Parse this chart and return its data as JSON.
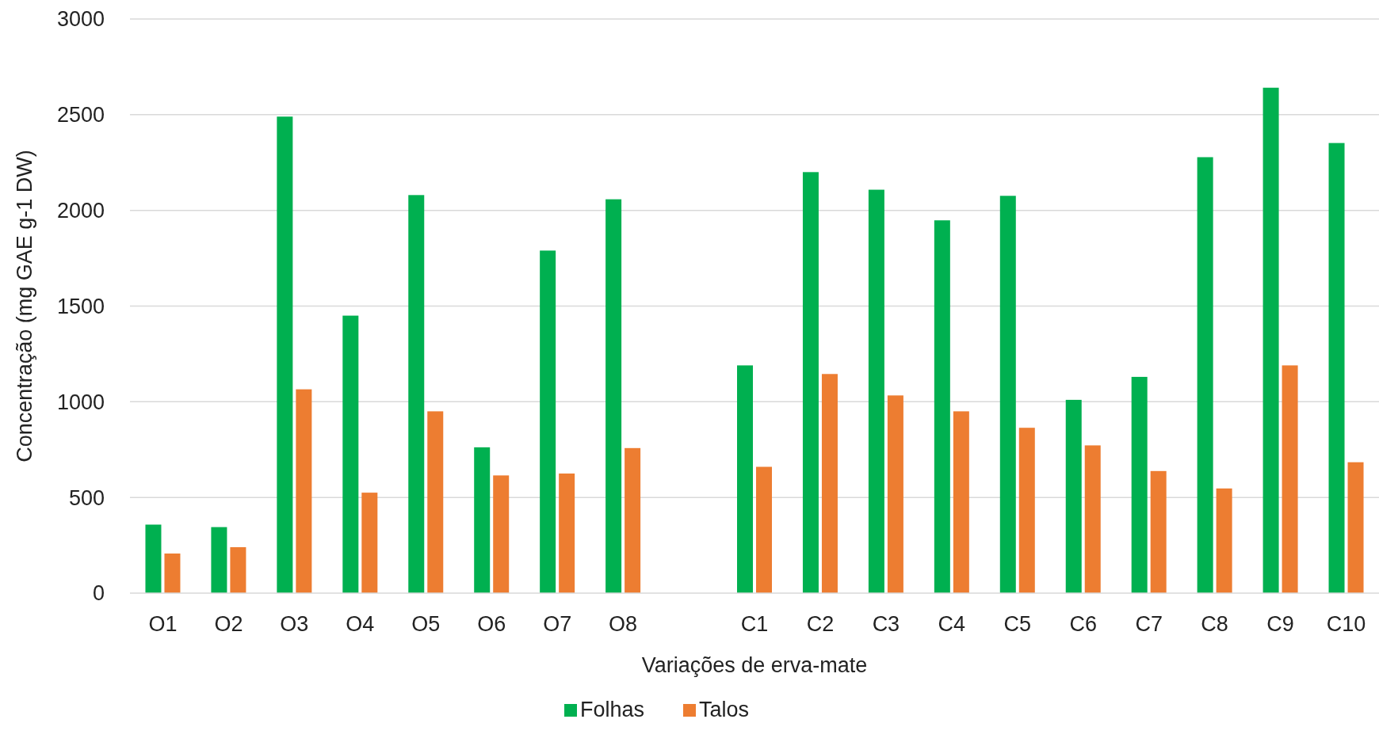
{
  "chart_data": {
    "type": "bar",
    "xlabel": "Variações de erva-mate",
    "ylabel": "Concentração (mg GAE g-1 DW)",
    "categories": [
      "O1",
      "O2",
      "O3",
      "O4",
      "O5",
      "O6",
      "O7",
      "O8",
      null,
      "C1",
      "C2",
      "C3",
      "C4",
      "C5",
      "C6",
      "C7",
      "C8",
      "C9",
      "C10"
    ],
    "series": [
      {
        "name": "Folhas",
        "color": "#00b050",
        "values": [
          358,
          345,
          2490,
          1450,
          2080,
          762,
          1790,
          2058,
          null,
          1190,
          2200,
          2108,
          1948,
          2076,
          1010,
          1130,
          2278,
          2641,
          2352
        ]
      },
      {
        "name": "Talos",
        "color": "#ed7d31",
        "values": [
          207,
          240,
          1065,
          525,
          950,
          615,
          625,
          758,
          null,
          660,
          1145,
          1033,
          950,
          864,
          772,
          638,
          547,
          1190,
          684
        ]
      }
    ],
    "ylim": [
      0,
      3000
    ],
    "yticks": [
      0,
      500,
      1000,
      1500,
      2000,
      2500,
      3000
    ],
    "grid": "y",
    "legend": "bottom"
  }
}
